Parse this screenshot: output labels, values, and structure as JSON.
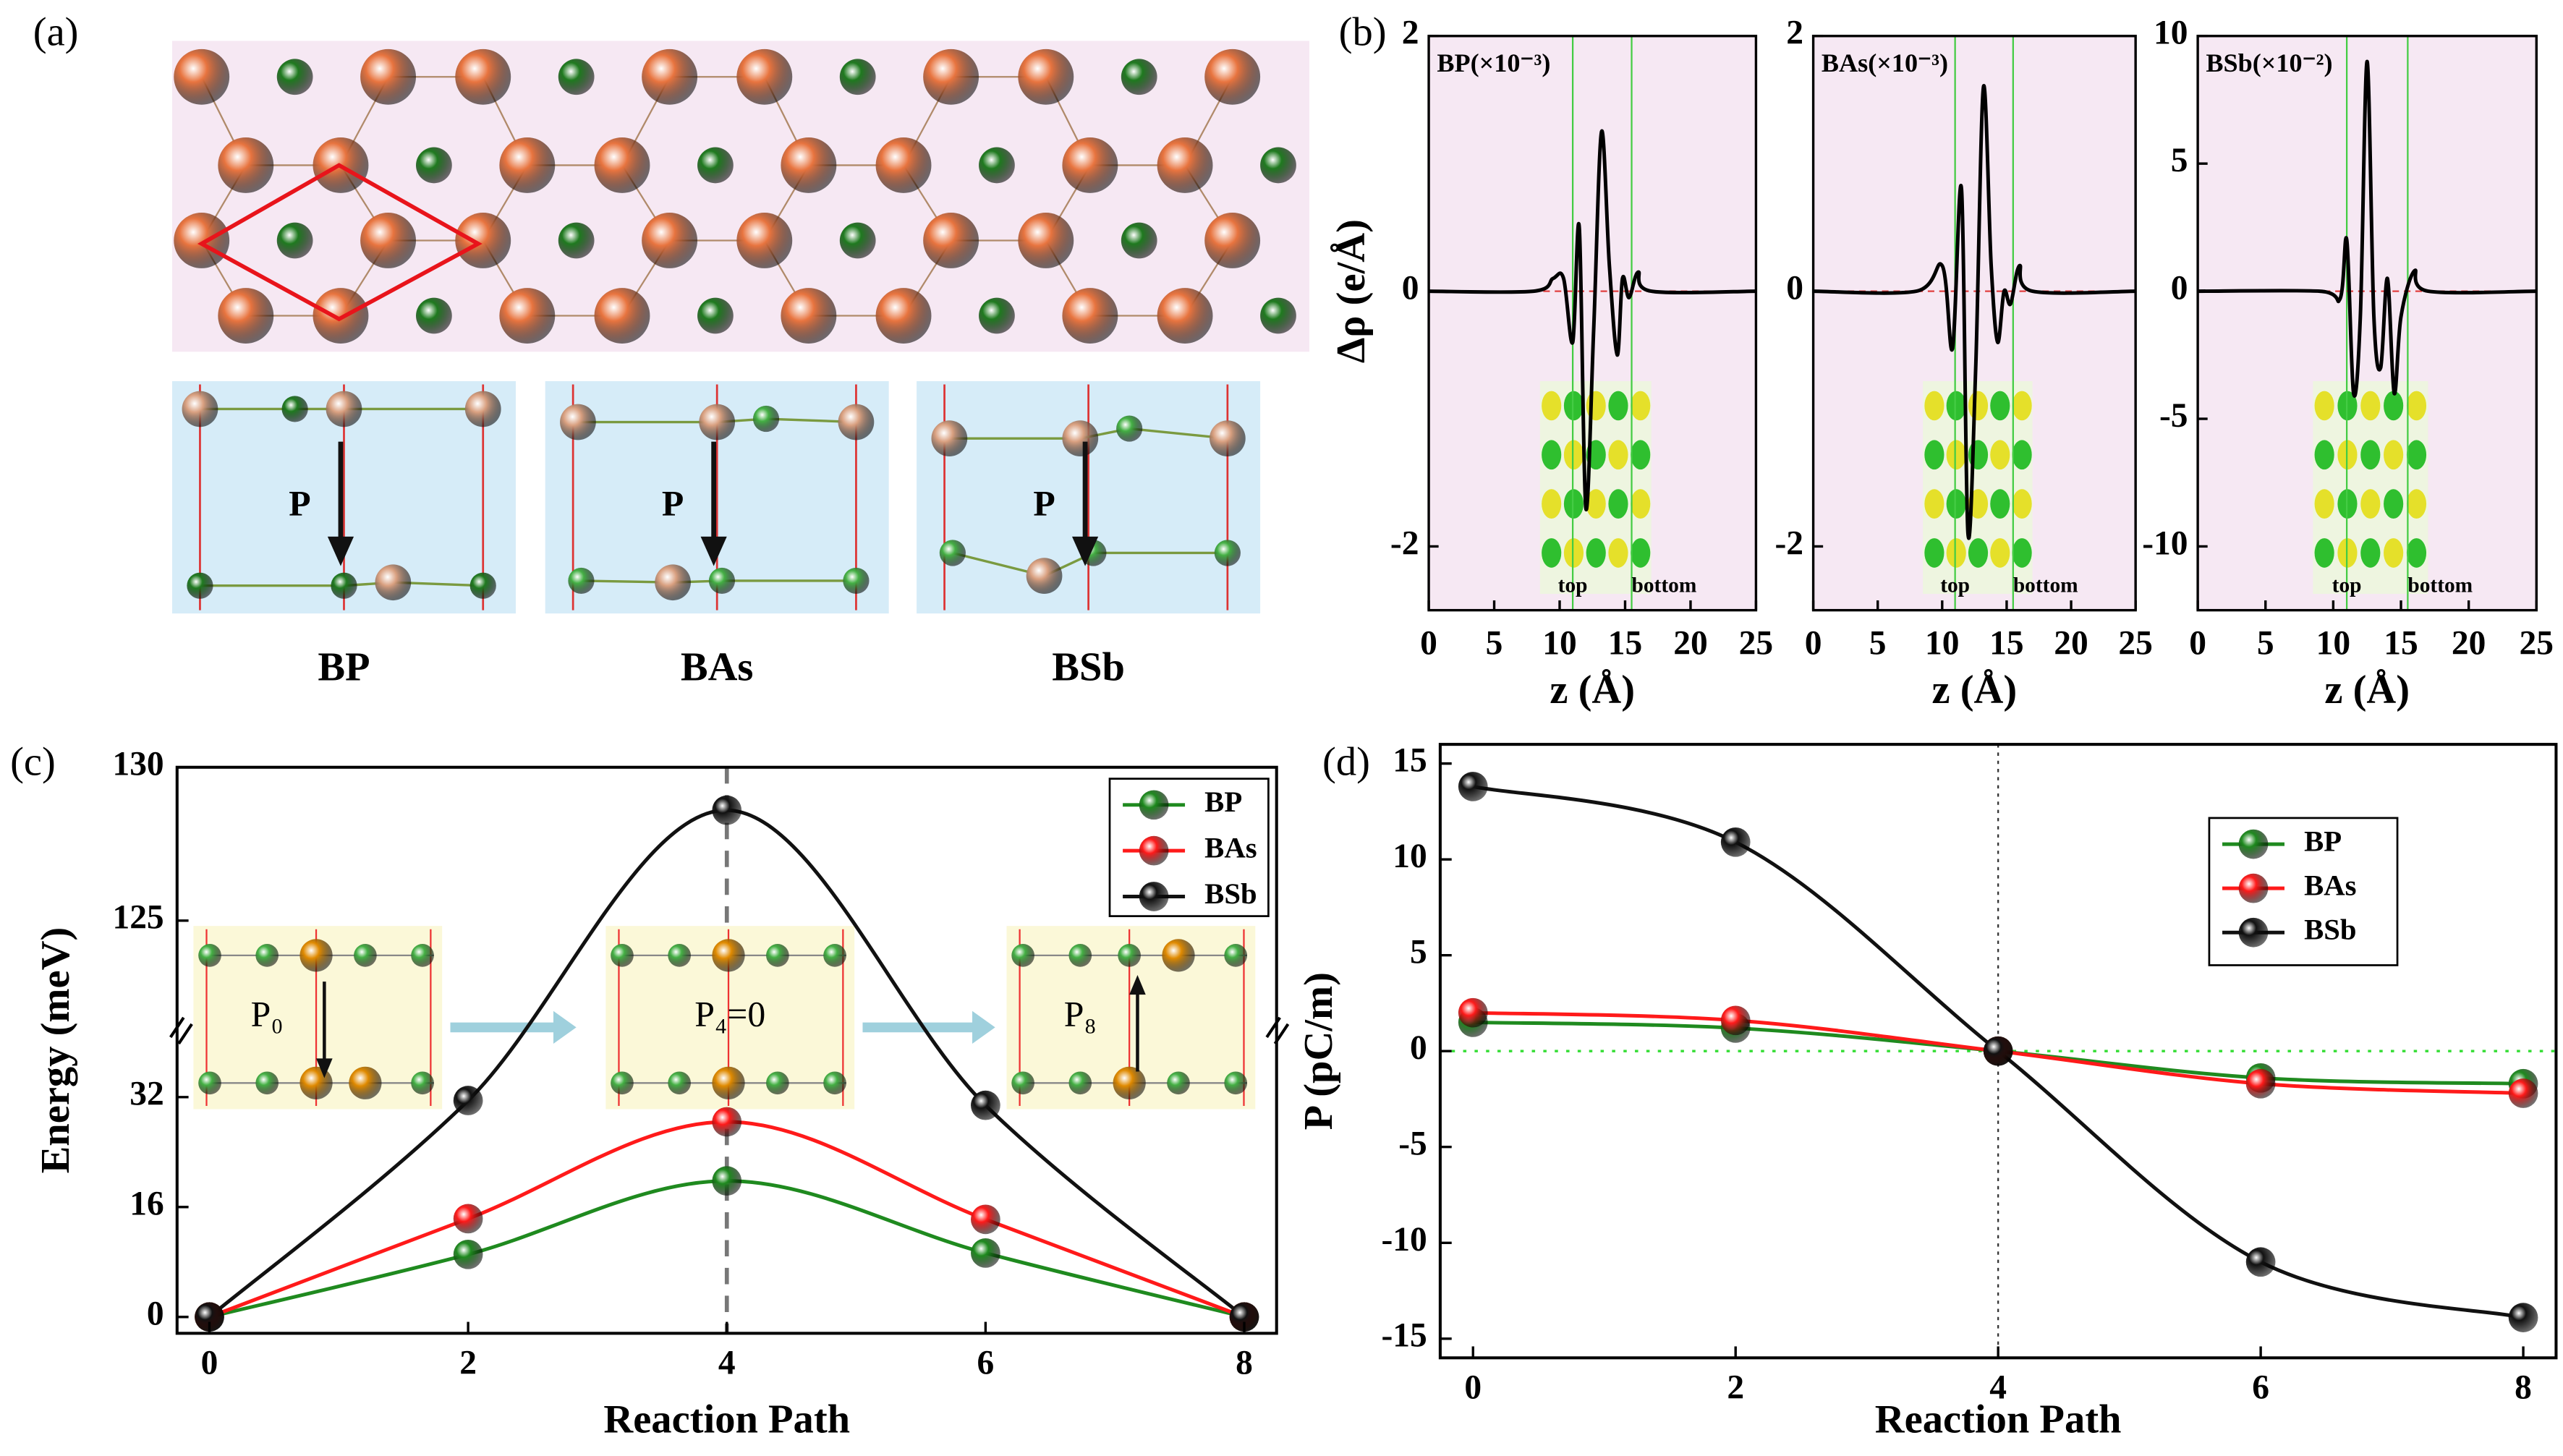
{
  "panel_labels": [
    "(a)",
    "(b)",
    "(c)",
    "(d)"
  ],
  "structure": {
    "labels": [
      "BP",
      "BAs",
      "BSb"
    ],
    "arrow_label": "P"
  },
  "chart_data": [
    {
      "type": "line",
      "title": "BP(×10⁻³)",
      "x_label": "z (Å)",
      "y_label": "Δρ (e/Å)",
      "annotations": [
        "top",
        "bottom"
      ],
      "x": [
        0,
        8,
        9.5,
        10.3,
        11,
        11.5,
        12,
        12.6,
        13.2,
        13.8,
        14.4,
        14.8,
        15.3,
        16,
        17,
        25
      ],
      "values": [
        0,
        0,
        0.1,
        0.1,
        -0.4,
        0.5,
        -1.7,
        -0.3,
        1.25,
        0.2,
        -0.5,
        0.1,
        -0.05,
        0.15,
        0,
        0
      ],
      "color": "#000000",
      "xlim": [
        0,
        25
      ],
      "xticks": [
        0,
        5,
        10,
        15,
        20,
        25
      ],
      "ylim": [
        -2.5,
        2
      ],
      "yticks": [
        -2,
        0,
        2
      ]
    },
    {
      "type": "line",
      "title": "BAs(×10⁻³)",
      "x_label": "z (Å)",
      "annotations": [
        "top",
        "bottom"
      ],
      "x": [
        0,
        8,
        10,
        10.8,
        11.5,
        12,
        12.6,
        13.2,
        13.8,
        14.3,
        14.8,
        15.3,
        16,
        17,
        25
      ],
      "values": [
        0,
        0,
        0.2,
        -0.45,
        0.8,
        -1.9,
        -0.6,
        1.6,
        0.2,
        -0.4,
        0,
        -0.1,
        0.2,
        0,
        0
      ],
      "color": "#000000",
      "xlim": [
        0,
        25
      ],
      "xticks": [
        0,
        5,
        10,
        15,
        20,
        25
      ],
      "ylim": [
        -2.5,
        2
      ],
      "yticks": [
        -2,
        0,
        2
      ]
    },
    {
      "type": "line",
      "title": "BSb(×10⁻²)",
      "x_label": "z (Å)",
      "annotations": [
        "top",
        "bottom"
      ],
      "x": [
        0,
        9,
        10.5,
        11,
        11.5,
        12,
        12.5,
        13,
        13.5,
        14,
        14.5,
        15,
        16,
        17,
        25
      ],
      "values": [
        0,
        0,
        -0.3,
        2,
        -4,
        -1,
        9,
        -1,
        -3,
        0.5,
        -4,
        -1,
        0.8,
        0,
        0
      ],
      "color": "#000000",
      "xlim": [
        0,
        25
      ],
      "xticks": [
        0,
        5,
        10,
        15,
        20,
        25
      ],
      "ylim": [
        -12.5,
        10
      ],
      "yticks": [
        -10,
        -5,
        0,
        5,
        10
      ]
    },
    {
      "type": "line",
      "x_label": "Reaction Path",
      "y_label": "Energy (meV)",
      "annotations": [
        "P₀",
        "P₄=0",
        "P₈"
      ],
      "x": [
        0,
        2,
        4,
        6,
        8
      ],
      "xlim": [
        -0.25,
        8.25
      ],
      "xticks": [
        0,
        2,
        4,
        6,
        8
      ],
      "ylim": [
        0,
        130
      ],
      "ybreak": [
        40,
        122
      ],
      "yticks": [
        0,
        16,
        32,
        125,
        130
      ],
      "series": [
        {
          "name": "BP",
          "color": "#1f8a1f",
          "values": [
            0,
            9.1,
            19.8,
            9.3,
            0
          ]
        },
        {
          "name": "BAs",
          "color": "#ff1a1a",
          "values": [
            0,
            14.3,
            28.4,
            14.2,
            0
          ]
        },
        {
          "name": "BSb",
          "color": "#111111",
          "values": [
            0,
            31.5,
            128.6,
            30.8,
            0
          ]
        }
      ]
    },
    {
      "type": "line",
      "x_label": "Reaction Path",
      "y_label": "P (pC/m)",
      "x": [
        0,
        2,
        4,
        6,
        8
      ],
      "xlim": [
        -0.25,
        8.25
      ],
      "xticks": [
        0,
        2,
        4,
        6,
        8
      ],
      "ylim": [
        -16,
        16
      ],
      "yticks": [
        -15,
        -10,
        -5,
        0,
        5,
        10,
        15
      ],
      "series": [
        {
          "name": "BP",
          "color": "#1f8a1f",
          "values": [
            1.5,
            1.2,
            0,
            -1.4,
            -1.7
          ]
        },
        {
          "name": "BAs",
          "color": "#ff1a1a",
          "values": [
            2.0,
            1.6,
            0,
            -1.7,
            -2.2
          ]
        },
        {
          "name": "BSb",
          "color": "#111111",
          "values": [
            13.8,
            10.9,
            0,
            -11,
            -13.9
          ]
        }
      ]
    }
  ]
}
